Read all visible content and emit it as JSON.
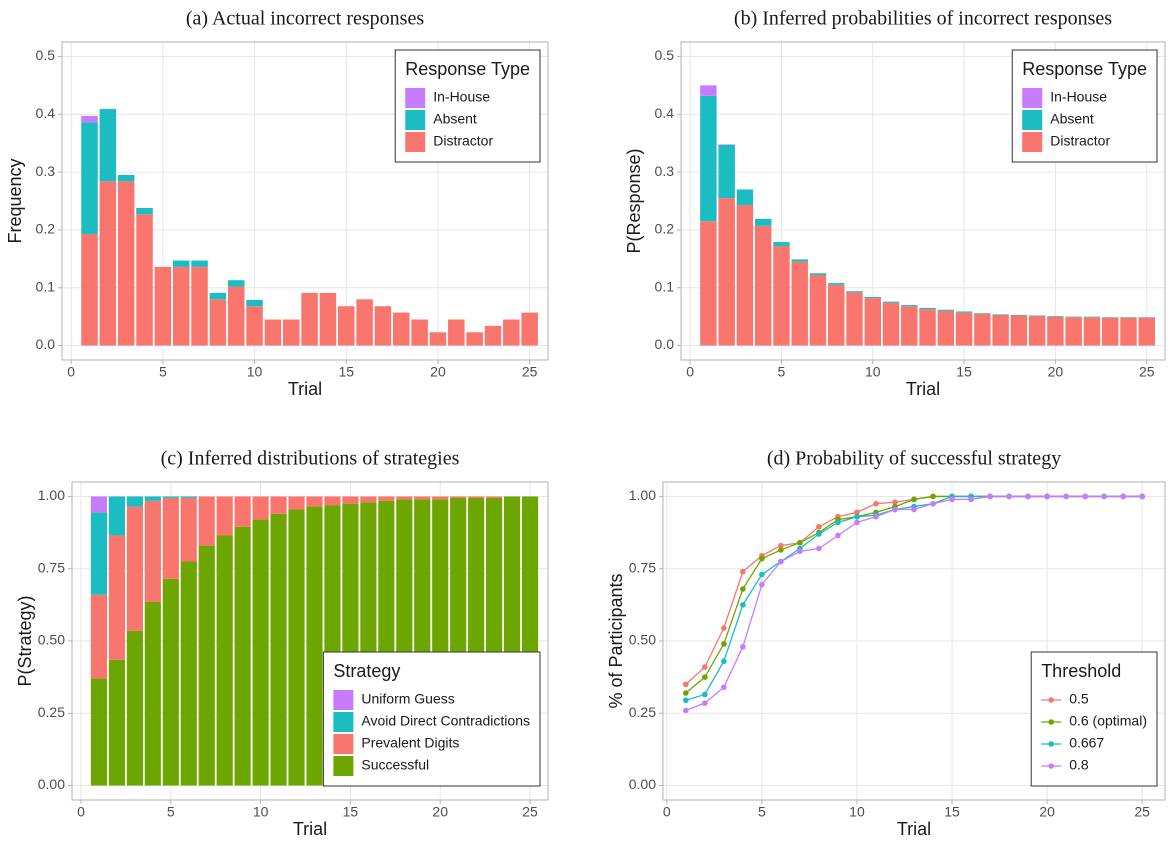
{
  "chart_data": [
    {
      "type": "bar",
      "stacked": true,
      "title": "(a) Actual incorrect responses",
      "xlabel": "Trial",
      "ylabel": "Frequency",
      "x": [
        1,
        2,
        3,
        4,
        5,
        6,
        7,
        8,
        9,
        10,
        11,
        12,
        13,
        14,
        15,
        16,
        17,
        18,
        19,
        20,
        21,
        22,
        23,
        24,
        25
      ],
      "series": [
        {
          "name": "Distractor",
          "color": "#F8766D",
          "values": [
            0.193,
            0.284,
            0.284,
            0.227,
            0.136,
            0.136,
            0.136,
            0.08,
            0.102,
            0.068,
            0.045,
            0.045,
            0.091,
            0.091,
            0.068,
            0.08,
            0.068,
            0.057,
            0.045,
            0.023,
            0.045,
            0.023,
            0.034,
            0.045,
            0.057
          ]
        },
        {
          "name": "Absent",
          "color": "#1CBDC2",
          "values": [
            0.193,
            0.125,
            0.011,
            0.011,
            0,
            0.011,
            0.011,
            0.011,
            0.011,
            0.011,
            0,
            0,
            0,
            0,
            0,
            0,
            0,
            0,
            0,
            0,
            0,
            0,
            0,
            0,
            0
          ]
        },
        {
          "name": "In-House",
          "color": "#C77CFF",
          "values": [
            0.011,
            0,
            0,
            0,
            0,
            0,
            0,
            0,
            0,
            0,
            0,
            0,
            0,
            0,
            0,
            0,
            0,
            0,
            0,
            0,
            0,
            0,
            0,
            0,
            0
          ]
        }
      ],
      "xlim": [
        -0.5,
        26
      ],
      "ylim": [
        -0.025,
        0.525
      ],
      "xticks": [
        0,
        5,
        10,
        15,
        20,
        25
      ],
      "yticks": [
        {
          "value": 0,
          "label": "0.0"
        },
        0.1,
        0.2,
        0.3,
        0.4,
        0.5
      ],
      "grid": true,
      "legend_title": "Response Type",
      "legend_position": "top-right"
    },
    {
      "type": "bar",
      "stacked": true,
      "title": "(b) Inferred probabilities of incorrect responses",
      "xlabel": "Trial",
      "ylabel": "P(Response)",
      "x": [
        1,
        2,
        3,
        4,
        5,
        6,
        7,
        8,
        9,
        10,
        11,
        12,
        13,
        14,
        15,
        16,
        17,
        18,
        19,
        20,
        21,
        22,
        23,
        24,
        25
      ],
      "series": [
        {
          "name": "Distractor",
          "color": "#F8766D",
          "values": [
            0.215,
            0.255,
            0.243,
            0.207,
            0.172,
            0.145,
            0.122,
            0.105,
            0.092,
            0.082,
            0.074,
            0.068,
            0.063,
            0.06,
            0.057,
            0.055,
            0.053,
            0.052,
            0.051,
            0.05,
            0.049,
            0.049,
            0.048,
            0.048,
            0.048
          ]
        },
        {
          "name": "Absent",
          "color": "#1CBDC2",
          "values": [
            0.217,
            0.092,
            0.027,
            0.012,
            0.007,
            0.004,
            0.003,
            0.003,
            0.002,
            0.002,
            0.002,
            0.002,
            0.002,
            0.002,
            0.002,
            0.001,
            0.001,
            0.001,
            0.001,
            0.001,
            0.001,
            0.001,
            0.001,
            0.001,
            0.001
          ]
        },
        {
          "name": "In-House",
          "color": "#C77CFF",
          "values": [
            0.018,
            0.001,
            0,
            0,
            0,
            0,
            0,
            0,
            0,
            0,
            0,
            0,
            0,
            0,
            0,
            0,
            0,
            0,
            0,
            0,
            0,
            0,
            0,
            0,
            0
          ]
        }
      ],
      "xlim": [
        -0.5,
        26
      ],
      "ylim": [
        -0.025,
        0.525
      ],
      "xticks": [
        0,
        5,
        10,
        15,
        20,
        25
      ],
      "yticks": [
        {
          "value": 0,
          "label": "0.0"
        },
        0.1,
        0.2,
        0.3,
        0.4,
        0.5
      ],
      "grid": true,
      "legend_title": "Response Type",
      "legend_position": "top-right"
    },
    {
      "type": "bar",
      "stacked": true,
      "title": "(c) Inferred distributions of strategies",
      "xlabel": "Trial",
      "ylabel": "P(Strategy)",
      "x": [
        1,
        2,
        3,
        4,
        5,
        6,
        7,
        8,
        9,
        10,
        11,
        12,
        13,
        14,
        15,
        16,
        17,
        18,
        19,
        20,
        21,
        22,
        23,
        24,
        25
      ],
      "series": [
        {
          "name": "Successful",
          "color": "#6DA600",
          "values": [
            0.37,
            0.435,
            0.535,
            0.635,
            0.715,
            0.775,
            0.83,
            0.865,
            0.895,
            0.92,
            0.94,
            0.955,
            0.965,
            0.97,
            0.975,
            0.98,
            0.985,
            0.99,
            0.99,
            0.99,
            0.995,
            0.995,
            0.995,
            1.0,
            1.0
          ]
        },
        {
          "name": "Prevalent Digits",
          "color": "#F8766D",
          "values": [
            0.29,
            0.43,
            0.43,
            0.35,
            0.28,
            0.22,
            0.17,
            0.135,
            0.105,
            0.08,
            0.06,
            0.045,
            0.035,
            0.03,
            0.025,
            0.02,
            0.015,
            0.01,
            0.01,
            0.01,
            0.005,
            0.005,
            0.005,
            0,
            0
          ]
        },
        {
          "name": "Avoid Direct Contradictions",
          "color": "#1CBDC2",
          "values": [
            0.285,
            0.135,
            0.035,
            0.015,
            0.005,
            0.005,
            0,
            0,
            0,
            0,
            0,
            0,
            0,
            0,
            0,
            0,
            0,
            0,
            0,
            0,
            0,
            0,
            0,
            0,
            0
          ]
        },
        {
          "name": "Uniform Guess",
          "color": "#C77CFF",
          "values": [
            0.055,
            0,
            0,
            0,
            0,
            0,
            0,
            0,
            0,
            0,
            0,
            0,
            0,
            0,
            0,
            0,
            0,
            0,
            0,
            0,
            0,
            0,
            0,
            0,
            0
          ]
        }
      ],
      "xlim": [
        -0.5,
        26
      ],
      "ylim": [
        -0.05,
        1.05
      ],
      "xticks": [
        0,
        5,
        10,
        15,
        20,
        25
      ],
      "yticks": [
        {
          "value": 0,
          "label": "0.00"
        },
        0.25,
        {
          "value": 0.5,
          "label": "0.50"
        },
        0.75,
        {
          "value": 1,
          "label": "1.00"
        }
      ],
      "grid": true,
      "legend_title": "Strategy",
      "legend_position": "bottom-right"
    },
    {
      "type": "line",
      "title": "(d) Probability of successful strategy",
      "xlabel": "Trial",
      "ylabel": "% of Participants",
      "x": [
        1,
        2,
        3,
        4,
        5,
        6,
        7,
        8,
        9,
        10,
        11,
        12,
        13,
        14,
        15,
        16,
        17,
        18,
        19,
        20,
        21,
        22,
        23,
        24,
        25
      ],
      "series": [
        {
          "name": "0.5",
          "color": "#F8766D",
          "values": [
            0.35,
            0.41,
            0.545,
            0.74,
            0.795,
            0.83,
            0.84,
            0.895,
            0.93,
            0.945,
            0.975,
            0.98,
            0.99,
            1,
            1,
            1,
            1,
            1,
            1,
            1,
            1,
            1,
            1,
            1,
            1
          ]
        },
        {
          "name": "0.6 (optimal)",
          "color": "#6DA600",
          "values": [
            0.32,
            0.375,
            0.49,
            0.68,
            0.785,
            0.815,
            0.84,
            0.875,
            0.92,
            0.93,
            0.945,
            0.965,
            0.99,
            1,
            1,
            1,
            1,
            1,
            1,
            1,
            1,
            1,
            1,
            1,
            1
          ]
        },
        {
          "name": "0.667",
          "color": "#1CBDC2",
          "values": [
            0.295,
            0.315,
            0.43,
            0.625,
            0.73,
            0.775,
            0.82,
            0.87,
            0.91,
            0.93,
            0.935,
            0.955,
            0.965,
            0.975,
            1,
            1,
            1,
            1,
            1,
            1,
            1,
            1,
            1,
            1,
            1
          ]
        },
        {
          "name": "0.8",
          "color": "#C77CFF",
          "values": [
            0.26,
            0.285,
            0.34,
            0.48,
            0.695,
            0.775,
            0.81,
            0.82,
            0.865,
            0.91,
            0.93,
            0.955,
            0.955,
            0.975,
            0.99,
            0.99,
            1,
            1,
            1,
            1,
            1,
            1,
            1,
            1,
            1
          ]
        }
      ],
      "xlim": [
        -0.2,
        26.2
      ],
      "ylim": [
        -0.05,
        1.05
      ],
      "xticks": [
        0,
        5,
        10,
        15,
        20,
        25
      ],
      "yticks": [
        {
          "value": 0,
          "label": "0.00"
        },
        0.25,
        {
          "value": 0.5,
          "label": "0.50"
        },
        0.75,
        {
          "value": 1,
          "label": "1.00"
        }
      ],
      "grid": true,
      "legend_title": "Threshold",
      "legend_position": "bottom-right"
    }
  ]
}
